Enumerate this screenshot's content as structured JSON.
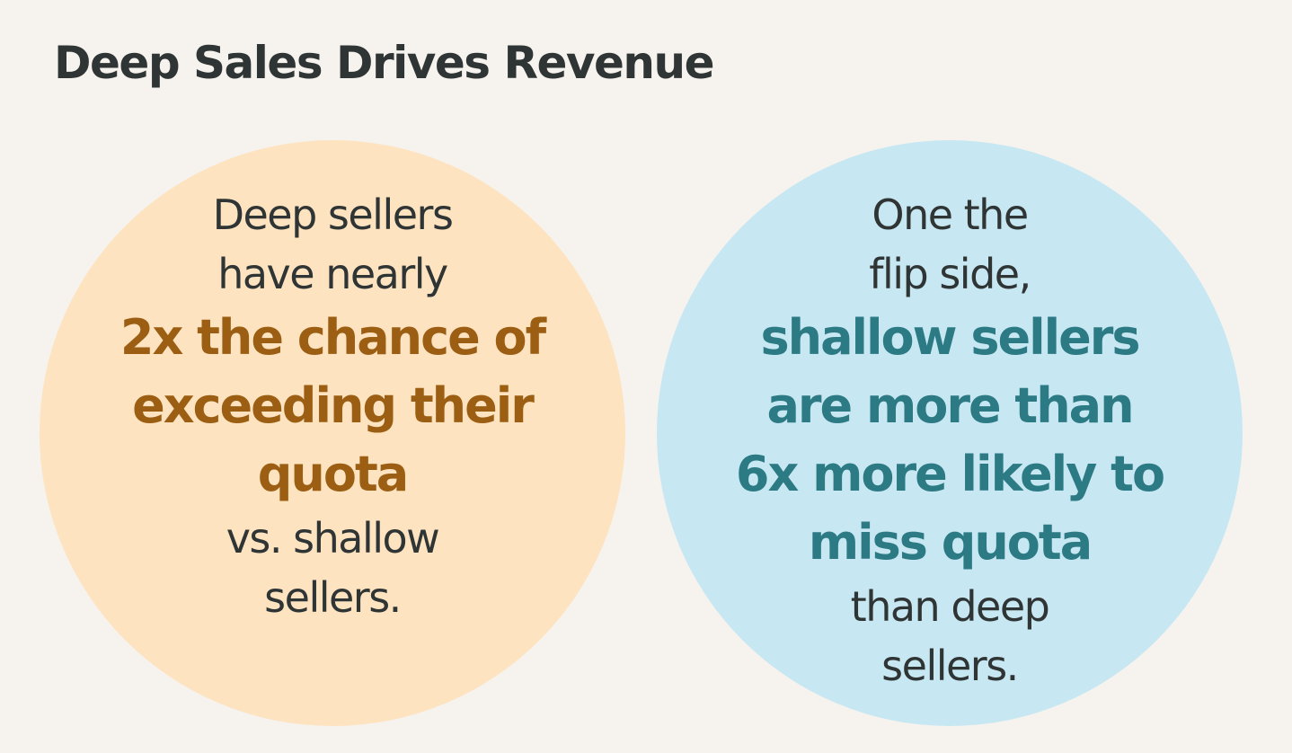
{
  "title": "Deep Sales Drives Revenue",
  "colors": {
    "background": "#f6f3ef",
    "title": "#2f3434",
    "body_text": "#2f3434",
    "left_circle": "#fde3c0",
    "left_emphasis": "#9b5e12",
    "right_circle": "#c7e7f2",
    "right_emphasis": "#2c7a84"
  },
  "left_card": {
    "intro_lines": [
      "Deep sellers",
      "have nearly"
    ],
    "emphasis_lines": [
      "2x the chance of",
      "exceeding their",
      "quota"
    ],
    "outro_lines": [
      "vs. shallow",
      "sellers."
    ]
  },
  "right_card": {
    "intro_lines": [
      "One the",
      "flip side,"
    ],
    "emphasis_lines": [
      "shallow sellers",
      "are more than",
      "6x more likely to",
      "miss quota"
    ],
    "outro_lines": [
      "than deep",
      "sellers."
    ]
  }
}
